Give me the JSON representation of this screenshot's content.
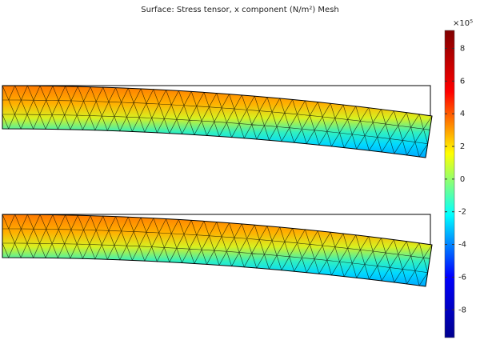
{
  "chart_data": {
    "type": "surface",
    "title": "Surface: Stress tensor, x component (N/m²) Mesh",
    "colorbar_multiplier": "×10⁵",
    "colormap": "jet",
    "ylim": [
      -9.7,
      9.1
    ],
    "yticks": [
      -8,
      -6,
      -4,
      -2,
      0,
      2,
      4,
      6,
      8
    ]
  }
}
